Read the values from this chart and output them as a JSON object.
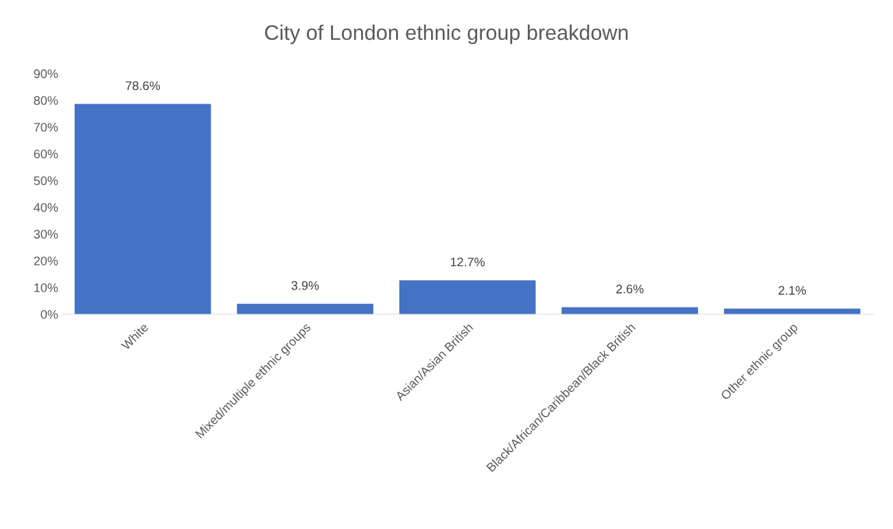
{
  "chart_data": {
    "type": "bar",
    "title": "City of London ethnic group breakdown",
    "categories": [
      "White",
      "Mixed/multiple ethnic groups",
      "Asian/Asian British",
      "Black/African/Caribbean/Black British",
      "Other ethnic group"
    ],
    "values": [
      78.6,
      3.9,
      12.7,
      2.6,
      2.1
    ],
    "value_labels": [
      "78.6%",
      "3.9%",
      "12.7%",
      "2.6%",
      "2.1%"
    ],
    "color": "#4472c4",
    "ylim": [
      0,
      90
    ],
    "yticks": [
      {
        "value": 0,
        "label": "0%"
      },
      {
        "value": 10,
        "label": "10%"
      },
      {
        "value": 20,
        "label": "20%"
      },
      {
        "value": 30,
        "label": "30%"
      },
      {
        "value": 40,
        "label": "40%"
      },
      {
        "value": 50,
        "label": "50%"
      },
      {
        "value": 60,
        "label": "60%"
      },
      {
        "value": 70,
        "label": "70%"
      },
      {
        "value": 80,
        "label": "80%"
      },
      {
        "value": 90,
        "label": "90%"
      }
    ],
    "grid": false,
    "legend": false
  }
}
